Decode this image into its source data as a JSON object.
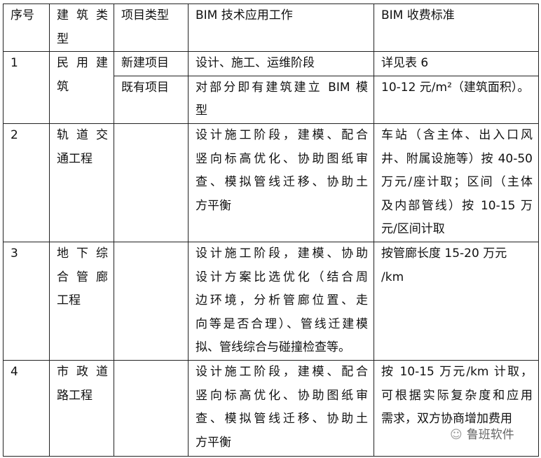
{
  "header": [
    [
      "序号"
    ],
    [
      "建筑类",
      "型"
    ],
    [
      "项目类型"
    ],
    [
      "BIM 技术应用工作"
    ],
    [
      "BIM 收费标准"
    ]
  ],
  "rows": [
    {
      "no": [
        "1"
      ],
      "type": [
        "民用建",
        "筑"
      ],
      "sub": [
        {
          "proj": [
            "新建项目"
          ],
          "work": [
            "设计、施工、运维阶段"
          ],
          "fee": [
            "详见表 6"
          ]
        },
        {
          "proj": [
            "既有项目"
          ],
          "work": [
            "对部分即有建筑建立 BIM 模",
            "型"
          ],
          "fee": [
            "10-12 元/m²（建筑面积）。"
          ]
        }
      ]
    },
    {
      "no": [
        "2"
      ],
      "type": [
        "轨道交",
        "通工程"
      ],
      "sub": [
        {
          "proj": [],
          "work": [
            "设计施工阶段，建模、配合",
            "竖向标高优化、协助图纸审",
            "查、模拟管线迁移、协助土",
            "方平衡"
          ],
          "fee": [
            "车站（含主体、出入口风",
            "井、附属设施等）按 40-50",
            "万元/座计取；区间（主体",
            "及内部管线）按 10-15 万",
            "元/区间计取"
          ]
        }
      ]
    },
    {
      "no": [
        "3"
      ],
      "type": [
        "地下综",
        "合管廊",
        "工程"
      ],
      "sub": [
        {
          "proj": [],
          "work": [
            "设计施工阶段，建模、协助",
            "设计方案比选优化（结合周",
            "边环境，分析管廊位置、走",
            "向等是否合理）、管线迁建模",
            "拟、管线综合与碰撞检查等。"
          ],
          "fee": [
            "按管廊长度 15-20 万元",
            "/km"
          ]
        }
      ]
    },
    {
      "no": [
        "4"
      ],
      "type": [
        "市政道",
        "路工程"
      ],
      "sub": [
        {
          "proj": [],
          "work": [
            "设计施工阶段，建模、配合",
            "竖向标高优化、协助图纸审",
            "查、模拟管线迁移、协助土",
            "方平衡"
          ],
          "fee": [
            "按 10-15 万元/km 计取，",
            "可根据实际复杂度和应用",
            "需求，双方协商增加费用"
          ]
        }
      ]
    }
  ],
  "watermark": "鲁班软件"
}
